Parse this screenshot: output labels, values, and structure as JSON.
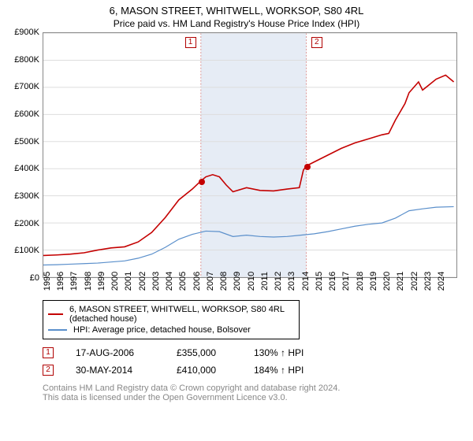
{
  "chart": {
    "title": "6, MASON STREET, WHITWELL, WORKSOP, S80 4RL",
    "subtitle": "Price paid vs. HM Land Registry's House Price Index (HPI)",
    "type": "line",
    "background_color": "#ffffff",
    "grid_color": "#dddddd",
    "axis_color": "#888888",
    "xlim": [
      1995,
      2025.5
    ],
    "ylim": [
      0,
      900000
    ],
    "ytick_step": 100000,
    "ytick_prefix": "£",
    "ytick_suffix": "K",
    "yticks": [
      {
        "v": 0,
        "label": "£0"
      },
      {
        "v": 100000,
        "label": "£100K"
      },
      {
        "v": 200000,
        "label": "£200K"
      },
      {
        "v": 300000,
        "label": "£300K"
      },
      {
        "v": 400000,
        "label": "£400K"
      },
      {
        "v": 500000,
        "label": "£500K"
      },
      {
        "v": 600000,
        "label": "£600K"
      },
      {
        "v": 700000,
        "label": "£700K"
      },
      {
        "v": 800000,
        "label": "£800K"
      },
      {
        "v": 900000,
        "label": "£900K"
      }
    ],
    "xticks": [
      1995,
      1996,
      1997,
      1998,
      1999,
      2000,
      2001,
      2002,
      2003,
      2004,
      2005,
      2006,
      2007,
      2008,
      2009,
      2010,
      2011,
      2012,
      2013,
      2014,
      2015,
      2016,
      2017,
      2018,
      2019,
      2020,
      2021,
      2022,
      2023,
      2024
    ],
    "band": {
      "start": 2006.63,
      "end": 2014.41,
      "fill_color": "#e6ecf5",
      "border_color": "#dc9696",
      "border_dash": "2,2"
    },
    "series": [
      {
        "name": "property",
        "label": "6, MASON STREET, WHITWELL, WORKSOP, S80 4RL (detached house)",
        "color": "#c40000",
        "line_width": 1.6,
        "points": [
          [
            1995,
            80000
          ],
          [
            1996,
            82000
          ],
          [
            1997,
            85000
          ],
          [
            1998,
            90000
          ],
          [
            1999,
            100000
          ],
          [
            2000,
            108000
          ],
          [
            2001,
            112000
          ],
          [
            2002,
            130000
          ],
          [
            2003,
            165000
          ],
          [
            2004,
            220000
          ],
          [
            2005,
            285000
          ],
          [
            2006,
            325000
          ],
          [
            2006.63,
            355000
          ],
          [
            2007,
            370000
          ],
          [
            2007.5,
            378000
          ],
          [
            2008,
            370000
          ],
          [
            2008.5,
            340000
          ],
          [
            2009,
            315000
          ],
          [
            2010,
            330000
          ],
          [
            2011,
            320000
          ],
          [
            2012,
            318000
          ],
          [
            2013,
            325000
          ],
          [
            2013.9,
            330000
          ],
          [
            2014.2,
            395000
          ],
          [
            2014.41,
            410000
          ],
          [
            2015,
            425000
          ],
          [
            2016,
            450000
          ],
          [
            2017,
            475000
          ],
          [
            2018,
            495000
          ],
          [
            2019,
            510000
          ],
          [
            2020,
            525000
          ],
          [
            2020.5,
            530000
          ],
          [
            2021,
            580000
          ],
          [
            2021.7,
            640000
          ],
          [
            2022,
            680000
          ],
          [
            2022.7,
            720000
          ],
          [
            2023,
            690000
          ],
          [
            2023.5,
            710000
          ],
          [
            2024,
            730000
          ],
          [
            2024.7,
            745000
          ],
          [
            2025.3,
            720000
          ]
        ]
      },
      {
        "name": "hpi",
        "label": "HPI: Average price, detached house, Bolsover",
        "color": "#5a8fcb",
        "line_width": 1.2,
        "points": [
          [
            1995,
            45000
          ],
          [
            1996,
            46000
          ],
          [
            1997,
            48000
          ],
          [
            1998,
            50000
          ],
          [
            1999,
            52000
          ],
          [
            2000,
            56000
          ],
          [
            2001,
            60000
          ],
          [
            2002,
            70000
          ],
          [
            2003,
            85000
          ],
          [
            2004,
            110000
          ],
          [
            2005,
            140000
          ],
          [
            2006,
            158000
          ],
          [
            2007,
            170000
          ],
          [
            2008,
            168000
          ],
          [
            2009,
            150000
          ],
          [
            2010,
            155000
          ],
          [
            2011,
            150000
          ],
          [
            2012,
            148000
          ],
          [
            2013,
            150000
          ],
          [
            2014,
            155000
          ],
          [
            2015,
            160000
          ],
          [
            2016,
            168000
          ],
          [
            2017,
            178000
          ],
          [
            2018,
            188000
          ],
          [
            2019,
            195000
          ],
          [
            2020,
            200000
          ],
          [
            2021,
            218000
          ],
          [
            2022,
            245000
          ],
          [
            2023,
            252000
          ],
          [
            2024,
            258000
          ],
          [
            2025.3,
            260000
          ]
        ]
      }
    ],
    "markers": [
      {
        "n": "1",
        "x": 2006.63,
        "y": 355000,
        "color": "#c40000",
        "label_side": "left"
      },
      {
        "n": "2",
        "x": 2014.41,
        "y": 410000,
        "color": "#c40000",
        "label_side": "right"
      }
    ]
  },
  "legend": {
    "rows": [
      {
        "color": "#c40000",
        "label": "6, MASON STREET, WHITWELL, WORKSOP, S80 4RL (detached house)"
      },
      {
        "color": "#5a8fcb",
        "label": "HPI: Average price, detached house, Bolsover"
      }
    ]
  },
  "transactions": [
    {
      "n": "1",
      "date": "17-AUG-2006",
      "price": "£355,000",
      "hpi": "130% ↑ HPI"
    },
    {
      "n": "2",
      "date": "30-MAY-2014",
      "price": "£410,000",
      "hpi": "184% ↑ HPI"
    }
  ],
  "footer": {
    "line1": "Contains HM Land Registry data © Crown copyright and database right 2024.",
    "line2": "This data is licensed under the Open Government Licence v3.0."
  }
}
